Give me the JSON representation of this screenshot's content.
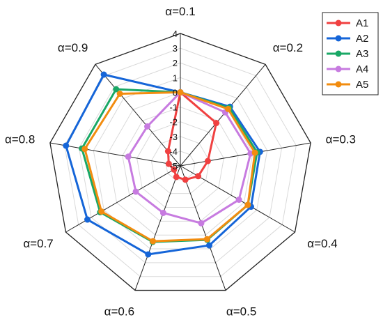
{
  "chart_data": {
    "type": "radar",
    "axes": [
      "α=0.1",
      "α=0.2",
      "α=0.3",
      "α=0.4",
      "α=0.5",
      "α=0.6",
      "α=0.7",
      "α=0.8",
      "α=0.9"
    ],
    "rlim": [
      -5,
      4
    ],
    "ticks": [
      "4",
      "3",
      "2",
      "1",
      "0",
      "-1",
      "-2",
      "-3",
      "-4",
      "-5"
    ],
    "tick_values": [
      4,
      3,
      2,
      1,
      0,
      -1,
      -2,
      -3,
      -4,
      -5
    ],
    "grid": true,
    "legend_position": "top-right",
    "series": [
      {
        "name": "A1",
        "color": "#f04040",
        "values": [
          0,
          -1.2,
          -3.1,
          -3.6,
          -4.0,
          -4.2,
          -4.5,
          -4.2,
          -3.7
        ]
      },
      {
        "name": "A2",
        "color": "#1565d8",
        "values": [
          0,
          0.25,
          0.5,
          0.55,
          0.75,
          1.4,
          2.3,
          2.9,
          3.1
        ]
      },
      {
        "name": "A3",
        "color": "#1aa866",
        "values": [
          0,
          0.15,
          0.3,
          0.3,
          0.35,
          0.5,
          1.3,
          1.8,
          1.8
        ]
      },
      {
        "name": "A4",
        "color": "#c77be0",
        "values": [
          0,
          -0.25,
          -0.15,
          -0.4,
          -0.85,
          -1.6,
          -1.5,
          -1.4,
          -1.5
        ]
      },
      {
        "name": "A5",
        "color": "#f28c0f",
        "values": [
          0,
          0.05,
          0.15,
          0.3,
          0.3,
          0.45,
          1.2,
          1.6,
          1.4
        ]
      }
    ]
  }
}
